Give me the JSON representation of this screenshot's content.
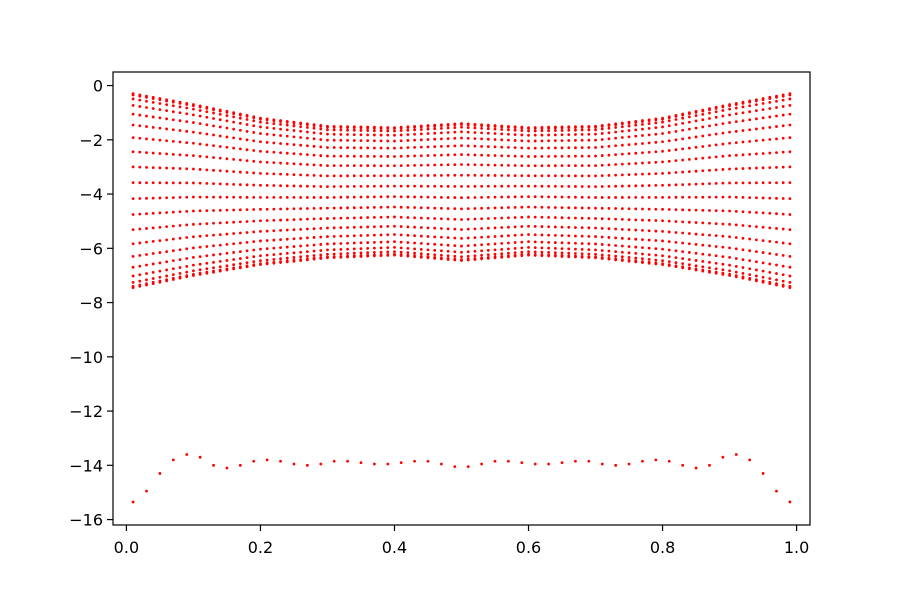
{
  "chart_data": {
    "type": "scatter",
    "title": "",
    "xlabel": "",
    "ylabel": "",
    "xlim": [
      -0.02,
      1.02
    ],
    "ylim": [
      -16.2,
      0.5
    ],
    "grid": false,
    "marker_color": "#ff0000",
    "x_ticks": [
      0.0,
      0.2,
      0.4,
      0.6,
      0.8,
      1.0
    ],
    "x_tick_labels": [
      "0.0",
      "0.2",
      "0.4",
      "0.6",
      "0.8",
      "1.0"
    ],
    "y_ticks": [
      0,
      -2,
      -4,
      -6,
      -8,
      -10,
      -12,
      -14,
      -16
    ],
    "y_tick_labels": [
      "0",
      "−2",
      "−4",
      "−6",
      "−8",
      "−10",
      "−12",
      "−14",
      "−16"
    ],
    "x_range": [
      0.01,
      0.99
    ],
    "x_count": 99,
    "band": {
      "levels_per_x": 20,
      "top_at_x": [
        [
          0.01,
          -0.3
        ],
        [
          0.1,
          -0.7
        ],
        [
          0.2,
          -1.2
        ],
        [
          0.3,
          -1.5
        ],
        [
          0.4,
          -1.55
        ],
        [
          0.5,
          -1.4
        ],
        [
          0.6,
          -1.55
        ],
        [
          0.7,
          -1.5
        ],
        [
          0.8,
          -1.2
        ],
        [
          0.9,
          -0.7
        ],
        [
          0.99,
          -0.3
        ]
      ],
      "bottom_at_x": [
        [
          0.01,
          -7.45
        ],
        [
          0.1,
          -7.0
        ],
        [
          0.2,
          -6.6
        ],
        [
          0.3,
          -6.35
        ],
        [
          0.4,
          -6.25
        ],
        [
          0.5,
          -6.45
        ],
        [
          0.6,
          -6.25
        ],
        [
          0.7,
          -6.35
        ],
        [
          0.8,
          -6.6
        ],
        [
          0.9,
          -7.0
        ],
        [
          0.99,
          -7.45
        ]
      ]
    },
    "lower_series": [
      [
        0.01,
        -15.35
      ],
      [
        0.03,
        -14.95
      ],
      [
        0.05,
        -14.3
      ],
      [
        0.07,
        -13.8
      ],
      [
        0.09,
        -13.6
      ],
      [
        0.11,
        -13.7
      ],
      [
        0.13,
        -14.0
      ],
      [
        0.15,
        -14.1
      ],
      [
        0.17,
        -14.0
      ],
      [
        0.19,
        -13.85
      ],
      [
        0.21,
        -13.8
      ],
      [
        0.23,
        -13.85
      ],
      [
        0.25,
        -13.95
      ],
      [
        0.27,
        -14.0
      ],
      [
        0.29,
        -13.95
      ],
      [
        0.31,
        -13.85
      ],
      [
        0.33,
        -13.85
      ],
      [
        0.35,
        -13.9
      ],
      [
        0.37,
        -13.95
      ],
      [
        0.39,
        -13.95
      ],
      [
        0.41,
        -13.9
      ],
      [
        0.43,
        -13.85
      ],
      [
        0.45,
        -13.85
      ],
      [
        0.47,
        -13.95
      ],
      [
        0.49,
        -14.05
      ],
      [
        0.51,
        -14.05
      ],
      [
        0.53,
        -13.95
      ],
      [
        0.55,
        -13.85
      ],
      [
        0.57,
        -13.85
      ],
      [
        0.59,
        -13.9
      ],
      [
        0.61,
        -13.95
      ],
      [
        0.63,
        -13.95
      ],
      [
        0.65,
        -13.9
      ],
      [
        0.67,
        -13.85
      ],
      [
        0.69,
        -13.85
      ],
      [
        0.71,
        -13.95
      ],
      [
        0.73,
        -14.0
      ],
      [
        0.75,
        -13.95
      ],
      [
        0.77,
        -13.85
      ],
      [
        0.79,
        -13.8
      ],
      [
        0.81,
        -13.85
      ],
      [
        0.83,
        -14.0
      ],
      [
        0.85,
        -14.1
      ],
      [
        0.87,
        -14.0
      ],
      [
        0.89,
        -13.7
      ],
      [
        0.91,
        -13.6
      ],
      [
        0.93,
        -13.8
      ],
      [
        0.95,
        -14.3
      ],
      [
        0.97,
        -14.95
      ],
      [
        0.99,
        -15.35
      ]
    ]
  }
}
